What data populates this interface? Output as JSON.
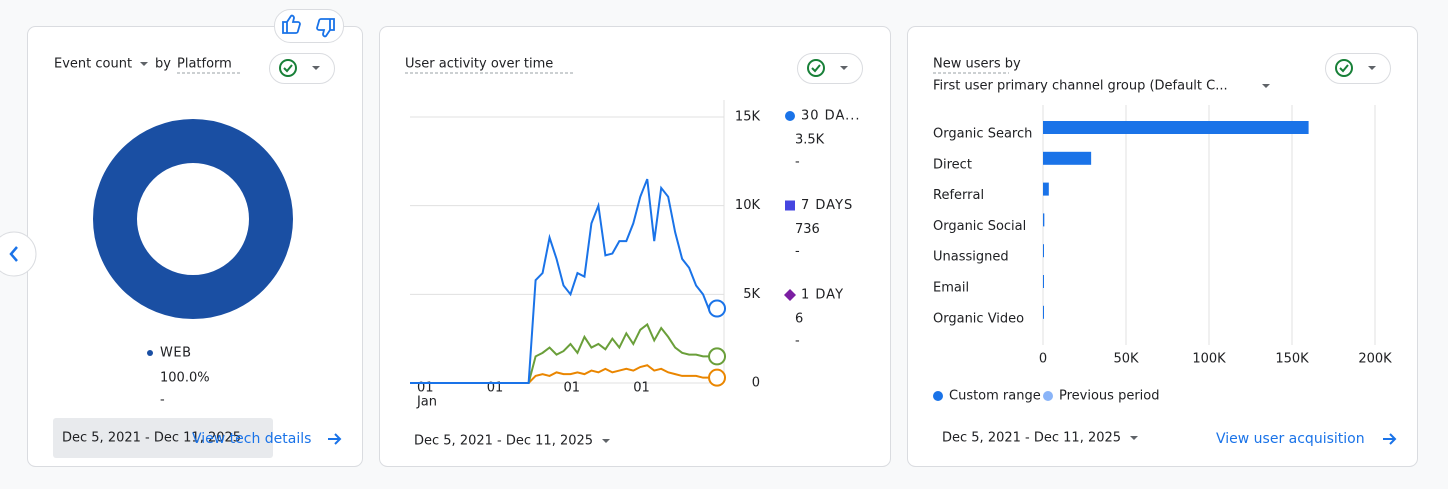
{
  "chart_data": [
    {
      "type": "pie",
      "title": "Event count",
      "title_by": "by",
      "dimension": "Platform",
      "categories": [
        "WEB"
      ],
      "values": [
        100
      ],
      "value_labels": [
        "100.0%"
      ],
      "change_labels": [
        "-"
      ],
      "colors": [
        "#1a4fa3"
      ]
    },
    {
      "type": "line",
      "title": "User activity over time",
      "x": [
        0,
        1,
        2,
        3,
        4,
        5,
        6,
        7,
        8,
        9,
        10,
        11,
        12,
        13,
        14,
        15,
        16,
        17,
        18,
        19,
        20,
        21,
        22,
        23,
        24,
        25,
        26,
        27,
        28,
        29,
        30,
        31,
        32,
        33,
        34,
        35,
        36,
        37,
        38,
        39,
        40,
        41,
        42,
        43,
        44
      ],
      "xlim": [
        0,
        45
      ],
      "xticks": [
        {
          "value": 2,
          "label": "01",
          "sublabel": "Jan"
        },
        {
          "value": 12,
          "label": "01"
        },
        {
          "value": 23,
          "label": "01"
        },
        {
          "value": 33,
          "label": "01"
        }
      ],
      "ylim": [
        0,
        15000
      ],
      "yticks": [
        0,
        {
          "value": 5000,
          "label": "5K"
        },
        {
          "value": 10000,
          "label": "10K"
        },
        {
          "value": 15000,
          "label": "15K"
        }
      ],
      "grid": true,
      "series": [
        {
          "name": "30 DA...",
          "color": "#1a73e8",
          "legend_color": "#1a73e8",
          "marker": "circle",
          "summary": "3.5K",
          "change": "-",
          "values": [
            0,
            0,
            0,
            0,
            0,
            0,
            0,
            0,
            0,
            0,
            0,
            0,
            0,
            0,
            0,
            0,
            0,
            0,
            5800,
            6200,
            8200,
            7000,
            5500,
            5000,
            6200,
            6000,
            9000,
            10000,
            7200,
            7300,
            8000,
            8000,
            9000,
            10500,
            11500,
            8000,
            11000,
            10500,
            8500,
            7000,
            6500,
            5500,
            5000,
            4000,
            4200
          ]
        },
        {
          "name": "7 DAYS",
          "color": "#6a9f3a",
          "legend_color": "#4545e0",
          "marker": "square",
          "summary": "736",
          "change": "-",
          "values": [
            0,
            0,
            0,
            0,
            0,
            0,
            0,
            0,
            0,
            0,
            0,
            0,
            0,
            0,
            0,
            0,
            0,
            0,
            1500,
            1700,
            2000,
            1600,
            1800,
            2200,
            1700,
            2600,
            2000,
            2200,
            1900,
            2500,
            2000,
            2800,
            2200,
            3000,
            3300,
            2400,
            3100,
            2600,
            2000,
            1700,
            1600,
            1600,
            1500,
            1500,
            1500
          ]
        },
        {
          "name": "1 DAY",
          "color": "#ea8600",
          "legend_color": "#7b1fa2",
          "marker": "diamond",
          "summary": "6",
          "change": "-",
          "values": [
            0,
            0,
            0,
            0,
            0,
            0,
            0,
            0,
            0,
            0,
            0,
            0,
            0,
            0,
            0,
            0,
            0,
            0,
            400,
            500,
            400,
            600,
            500,
            500,
            600,
            500,
            700,
            600,
            800,
            600,
            700,
            800,
            700,
            900,
            1000,
            700,
            800,
            600,
            500,
            400,
            400,
            400,
            300,
            300,
            300
          ]
        }
      ]
    },
    {
      "type": "bar",
      "orientation": "horizontal",
      "title": "New users by",
      "subtitle": "First user primary channel group (Default C...",
      "categories": [
        "Organic Search",
        "Direct",
        "Referral",
        "Organic Social",
        "Unassigned",
        "Email",
        "Organic Video"
      ],
      "values": [
        160000,
        29000,
        3500,
        800,
        500,
        300,
        200
      ],
      "color": "#1a73e8",
      "xlim": [
        0,
        200000
      ],
      "xticks": [
        0,
        {
          "value": 50000,
          "label": "50K"
        },
        {
          "value": 100000,
          "label": "100K"
        },
        {
          "value": 150000,
          "label": "150K"
        },
        {
          "value": 200000,
          "label": "200K"
        }
      ],
      "grid": true,
      "legend": [
        {
          "name": "Custom range",
          "color": "#1a73e8"
        },
        {
          "name": "Previous period",
          "color": "#8ab4f8"
        }
      ]
    }
  ],
  "cards": [
    {
      "date_range": "Dec 5, 2021 - Dec 11, 2025",
      "link": "View tech details"
    },
    {
      "date_range": "Dec 5, 2021 - Dec 11, 2025"
    },
    {
      "date_range": "Dec 5, 2021 - Dec 11, 2025",
      "link": "View user acquisition"
    }
  ]
}
